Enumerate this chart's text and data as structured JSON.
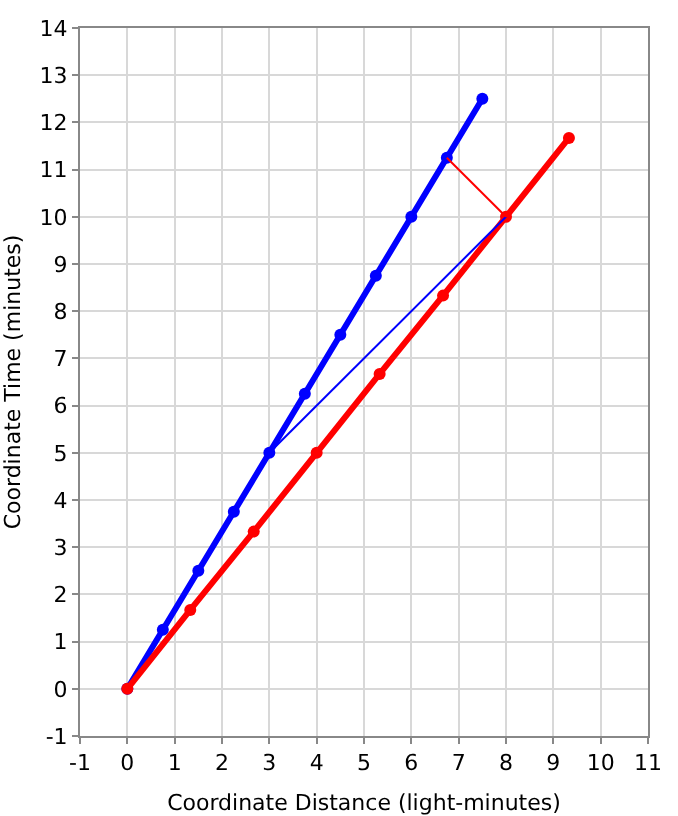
{
  "chart_data": {
    "type": "line",
    "xlabel": "Coordinate Distance (light-minutes)",
    "ylabel": "Coordinate Time (minutes)",
    "xlim": [
      -1,
      11
    ],
    "xticks": [
      -1,
      0,
      1,
      2,
      3,
      4,
      5,
      6,
      7,
      8,
      9,
      10,
      11
    ],
    "ylim": [
      -1,
      14
    ],
    "yticks": [
      -1,
      0,
      1,
      2,
      3,
      4,
      5,
      6,
      7,
      8,
      9,
      10,
      11,
      12,
      13,
      14
    ],
    "grid": true,
    "marker": "circle",
    "line_style": "solid",
    "series": [
      {
        "color": "#0000ff",
        "x": [
          0,
          0.75,
          1.5,
          2.25,
          3,
          3.75,
          4.5,
          5.25,
          6,
          6.75,
          7.5
        ],
        "values": [
          0,
          1.25,
          2.5,
          3.75,
          5,
          6.25,
          7.5,
          8.75,
          10,
          11.25,
          12.5
        ]
      },
      {
        "color": "#ff0000",
        "x": [
          0,
          1.33,
          2.67,
          4,
          5.33,
          6.67,
          8,
          9.33
        ],
        "values": [
          0,
          1.67,
          3.33,
          5,
          6.67,
          8.33,
          10,
          11.67
        ]
      },
      {
        "color": "#0000ff",
        "marker": "none",
        "x": [
          3,
          8
        ],
        "values": [
          5,
          10
        ]
      },
      {
        "color": "#ff0000",
        "marker": "none",
        "x": [
          6.75,
          8
        ],
        "values": [
          11.25,
          10
        ]
      }
    ]
  }
}
